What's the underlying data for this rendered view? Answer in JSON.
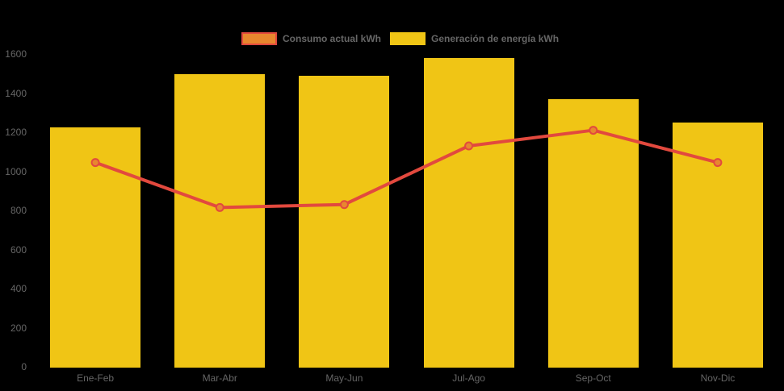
{
  "page": {
    "background": "#000000",
    "axis_text_color": "#666666"
  },
  "chart_data": {
    "type": "bar",
    "title": "",
    "xlabel": "",
    "ylabel": "",
    "categories": [
      "Ene-Feb",
      "Mar-Abr",
      "May-Jun",
      "Jul-Ago",
      "Sep-Oct",
      "Nov-Dic"
    ],
    "series": [
      {
        "name": "Consumo actual kWh",
        "type": "line",
        "values": [
          1045,
          815,
          830,
          1130,
          1210,
          1045
        ],
        "line_color": "#e2493e",
        "point_fill_color": "#e8872e"
      },
      {
        "name": "Generación de energía kWh",
        "type": "bar",
        "values": [
          1225,
          1495,
          1490,
          1580,
          1370,
          1250
        ],
        "bar_color": "#f0c515"
      }
    ],
    "ylim": [
      0,
      1600
    ],
    "ytick_step": 200,
    "yticks": [
      0,
      200,
      400,
      600,
      800,
      1000,
      1200,
      1400,
      1600
    ],
    "grid": false,
    "legend_position": "top"
  }
}
